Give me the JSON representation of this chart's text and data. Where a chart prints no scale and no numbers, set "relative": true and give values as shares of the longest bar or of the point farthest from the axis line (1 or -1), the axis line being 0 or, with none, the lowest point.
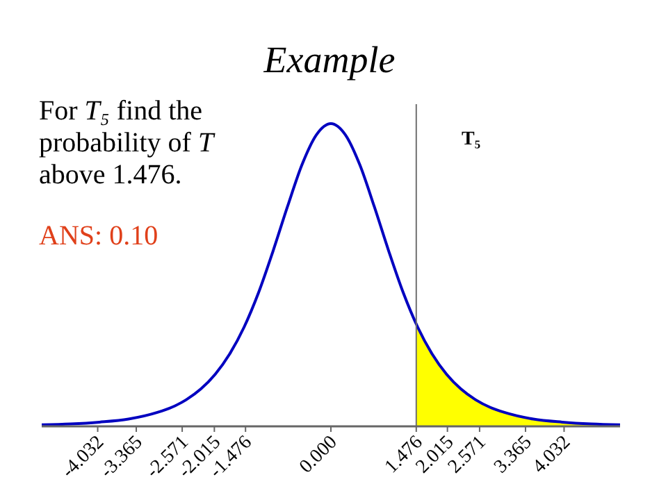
{
  "chart_data": {
    "type": "line",
    "title": "Example",
    "relative": true,
    "xlim": [
      -5,
      5
    ],
    "xticks": [
      -4.032,
      -3.365,
      -2.571,
      -2.015,
      -1.476,
      {
        "value": 0,
        "label": "0.000"
      },
      1.476,
      2.015,
      2.571,
      3.365,
      4.032
    ],
    "tick_labels": "x",
    "grid": false,
    "series": [
      {
        "type": "area",
        "color": "#ffff00",
        "x": [
          1.476,
          1.5,
          1.75,
          2,
          2.25,
          2.5,
          2.75,
          3,
          3.5,
          4,
          4.5,
          5
        ],
        "values": [
          0.338,
          0.328,
          0.239,
          0.172,
          0.123,
          0.088,
          0.063,
          0.046,
          0.024,
          0.014,
          0.008,
          0.005
        ]
      },
      {
        "color": "#0000c0",
        "x": [
          -5,
          -4.5,
          -4,
          -3.5,
          -3,
          -2.75,
          -2.5,
          -2.25,
          -2,
          -1.75,
          -1.5,
          -1.25,
          -1,
          -0.75,
          -0.5,
          -0.25,
          0,
          0.25,
          0.5,
          0.75,
          1,
          1.25,
          1.5,
          1.75,
          2,
          2.25,
          2.5,
          2.75,
          3,
          3.5,
          4,
          4.5,
          5
        ],
        "values": [
          0.005,
          0.008,
          0.014,
          0.024,
          0.046,
          0.063,
          0.088,
          0.123,
          0.172,
          0.239,
          0.328,
          0.442,
          0.579,
          0.726,
          0.864,
          0.963,
          1,
          0.963,
          0.864,
          0.726,
          0.579,
          0.442,
          0.328,
          0.239,
          0.172,
          0.123,
          0.088,
          0.063,
          0.046,
          0.024,
          0.014,
          0.008,
          0.005
        ]
      }
    ],
    "ref_lines": [
      {
        "axis": "x",
        "value": 1.476,
        "color": "#707070"
      }
    ],
    "annotations": [
      "For T₅ find the probability of T above 1.476.",
      "ANS: 0.10",
      "T₅"
    ]
  }
}
